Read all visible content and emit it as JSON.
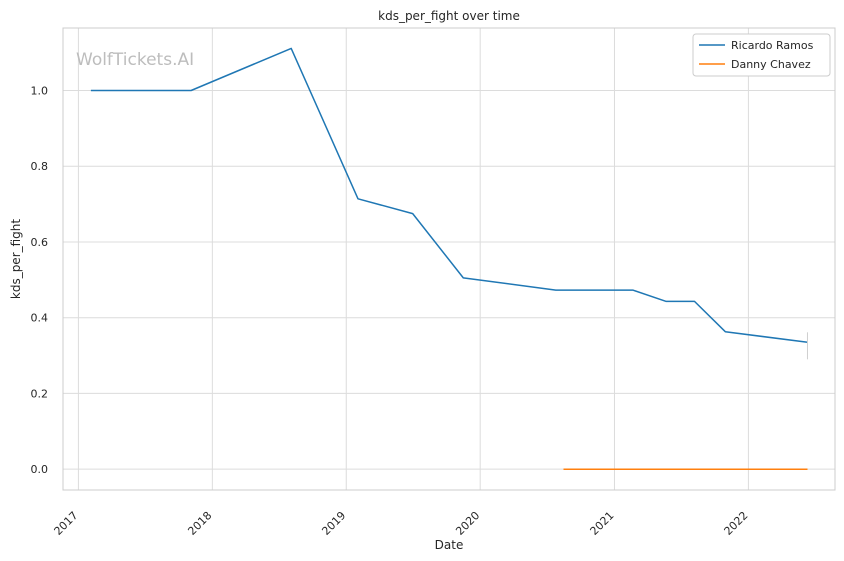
{
  "watermark": "WolfTickets.AI",
  "chart_data": {
    "type": "line",
    "title": "kds_per_fight over time",
    "xlabel": "Date",
    "ylabel": "kds_per_fight",
    "xlim": [
      "2016-11-20",
      "2022-08-25"
    ],
    "ylim": [
      -0.055,
      1.165
    ],
    "x_ticks": [
      "2017",
      "2018",
      "2019",
      "2020",
      "2021",
      "2022"
    ],
    "y_ticks": [
      0.0,
      0.2,
      0.4,
      0.6,
      0.8,
      1.0
    ],
    "y_tick_labels": [
      "0.0",
      "0.2",
      "0.4",
      "0.6",
      "0.8",
      "1.0"
    ],
    "grid": true,
    "legend": "top-right",
    "series": [
      {
        "name": "Ricardo Ramos",
        "color": "#1f77b4",
        "points": [
          {
            "x": "2017-02-04",
            "y": 1.0
          },
          {
            "x": "2017-11-04",
            "y": 1.0
          },
          {
            "x": "2018-08-04",
            "y": 1.111
          },
          {
            "x": "2019-02-02",
            "y": 0.714
          },
          {
            "x": "2019-07-01",
            "y": 0.675
          },
          {
            "x": "2019-11-16",
            "y": 0.505
          },
          {
            "x": "2020-07-25",
            "y": 0.473
          },
          {
            "x": "2021-02-20",
            "y": 0.473
          },
          {
            "x": "2021-05-22",
            "y": 0.443
          },
          {
            "x": "2021-08-07",
            "y": 0.443
          },
          {
            "x": "2021-10-30",
            "y": 0.363
          },
          {
            "x": "2022-06-11",
            "y": 0.335
          }
        ]
      },
      {
        "name": "Danny Chavez",
        "color": "#ff7f0e",
        "points": [
          {
            "x": "2020-08-15",
            "y": 0.0
          },
          {
            "x": "2022-06-11",
            "y": 0.0
          }
        ]
      }
    ]
  }
}
